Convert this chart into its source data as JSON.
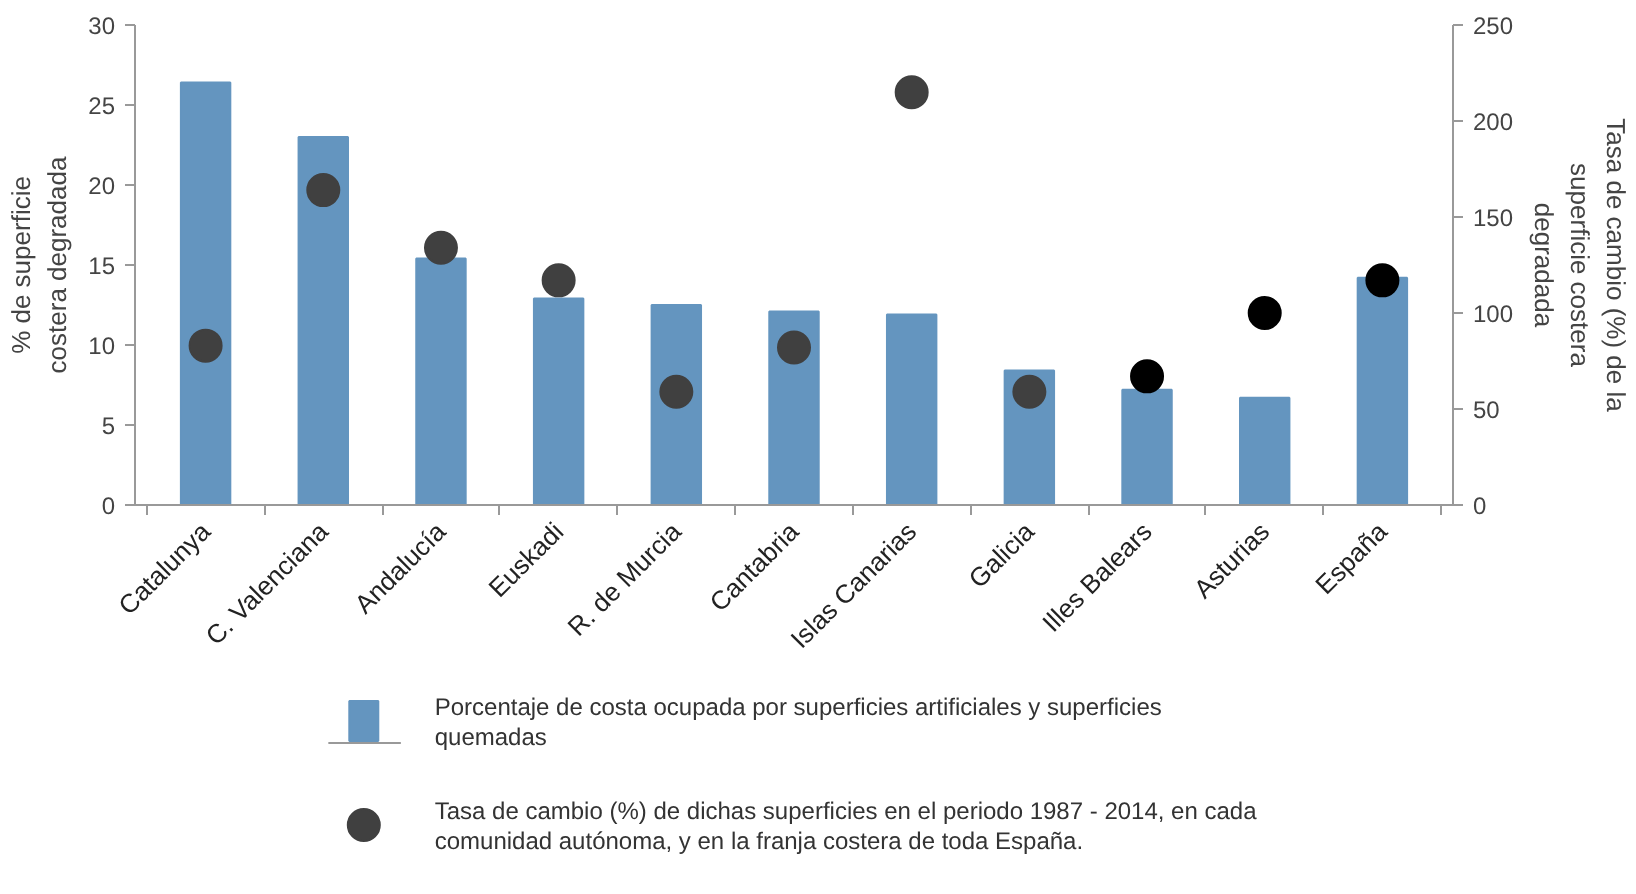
{
  "chart_data": {
    "type": "bar",
    "categories": [
      "Catalunya",
      "C. Valenciana",
      "Andalucía",
      "Euskadi",
      "R. de Murcia",
      "Cantabria",
      "Islas Canarias",
      "Galicia",
      "Illes Balears",
      "Asturias",
      "España"
    ],
    "ylabel": "% de superficie costera degradada",
    "y2label": "Tasa de cambio (%) de la superficie costera degradada",
    "ylim": [
      0,
      30
    ],
    "yticks": [
      0,
      5,
      10,
      15,
      20,
      25,
      30
    ],
    "y2lim": [
      0,
      250
    ],
    "y2ticks": [
      0,
      50,
      100,
      150,
      200,
      250
    ],
    "series": [
      {
        "name": "Porcentaje de costa ocupada por superficies artificiales y superficies quemadas",
        "color": "#6495bf",
        "values": [
          26.4,
          23.0,
          15.4,
          12.9,
          12.5,
          12.1,
          11.9,
          8.4,
          7.2,
          6.7,
          14.2
        ]
      },
      {
        "name": "Tasa de cambio (%) de dichas superficies en el periodo 1987 - 2014, en cada comunidad autónoma, y en la franja costera de toda España.",
        "type": "scatter",
        "axis": "y2",
        "marker": "circle",
        "colors": [
          "#404040",
          "#404040",
          "#404040",
          "#404040",
          "#404040",
          "#404040",
          "#404040",
          "#404040",
          "#000000",
          "#000000",
          "#000000"
        ],
        "values": [
          83,
          164,
          134,
          117,
          59,
          82,
          215,
          59,
          67,
          100,
          117
        ]
      }
    ],
    "grid": false,
    "legend": "bottom"
  }
}
